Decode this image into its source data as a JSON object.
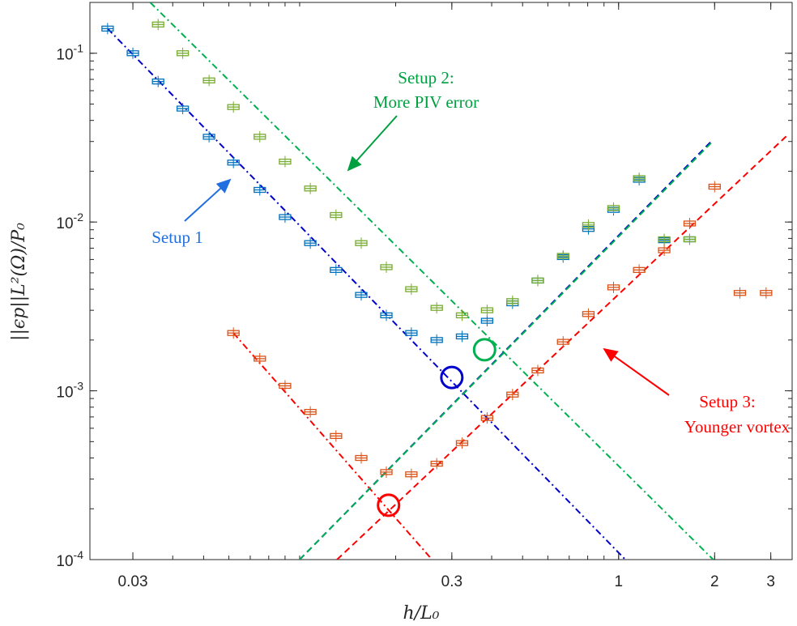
{
  "chart_data": {
    "type": "scatter",
    "title": "",
    "xlabel": "h/L₀",
    "ylabel": "||ϵp||L²(Ω)/P₀",
    "xscale": "log",
    "yscale": "log",
    "xlim": [
      0.022,
      3.5
    ],
    "ylim": [
      0.0001,
      0.2
    ],
    "grid": false,
    "legend": "none",
    "x_ticks": [
      {
        "value": 0.03,
        "label": "0.03"
      },
      {
        "value": 0.3,
        "label": "0.3"
      },
      {
        "value": 1,
        "label": "1"
      },
      {
        "value": 2,
        "label": "2"
      },
      {
        "value": 3,
        "label": "3"
      }
    ],
    "y_ticks": [
      {
        "value": 0.1,
        "base": "10",
        "exp": "-1"
      },
      {
        "value": 0.01,
        "base": "10",
        "exp": "-2"
      },
      {
        "value": 0.001,
        "base": "10",
        "exp": "-3"
      },
      {
        "value": 0.0001,
        "base": "10",
        "exp": "-4"
      }
    ],
    "series": [
      {
        "color": "#0072BD",
        "x": [
          0.025,
          0.03,
          0.036,
          0.043,
          0.052,
          0.062,
          0.075,
          0.09,
          0.108,
          0.13,
          0.156,
          0.187,
          0.224,
          0.269,
          0.323,
          0.387,
          0.465,
          0.558,
          0.67,
          0.804,
          0.964,
          1.16,
          1.39,
          1.67
        ],
        "y": [
          0.14,
          0.1,
          0.068,
          0.047,
          0.032,
          0.0225,
          0.0155,
          0.0107,
          0.0075,
          0.0052,
          0.0037,
          0.0028,
          0.0022,
          0.002,
          0.0021,
          0.0026,
          0.0033,
          0.0045,
          0.0062,
          0.0091,
          0.0118,
          0.0178,
          0.0078,
          0.0079
        ]
      },
      {
        "color": "#77AC30",
        "x": [
          0.036,
          0.043,
          0.052,
          0.062,
          0.075,
          0.09,
          0.108,
          0.13,
          0.156,
          0.187,
          0.224,
          0.269,
          0.323,
          0.387,
          0.465,
          0.558,
          0.67,
          0.804,
          0.964,
          1.16,
          1.39,
          1.67
        ],
        "y": [
          0.148,
          0.1,
          0.069,
          0.048,
          0.032,
          0.0228,
          0.0158,
          0.011,
          0.0075,
          0.0054,
          0.004,
          0.0031,
          0.0028,
          0.003,
          0.0034,
          0.0045,
          0.0063,
          0.0096,
          0.0121,
          0.0182,
          0.0079,
          0.0079
        ]
      },
      {
        "color": "#D95319",
        "x": [
          0.062,
          0.075,
          0.09,
          0.108,
          0.13,
          0.156,
          0.187,
          0.224,
          0.269,
          0.323,
          0.387,
          0.465,
          0.558,
          0.67,
          0.804,
          0.964,
          1.16,
          1.39,
          1.67,
          2.0,
          2.4,
          2.9
        ],
        "y": [
          0.0022,
          0.00155,
          0.00107,
          0.00075,
          0.00054,
          0.0004,
          0.00033,
          0.00032,
          0.00037,
          0.00049,
          0.00069,
          0.00095,
          0.00132,
          0.00195,
          0.00285,
          0.0041,
          0.0052,
          0.0068,
          0.0098,
          0.0162,
          0.0038,
          0.0038
        ]
      }
    ],
    "fit_lines": [
      {
        "color": "#0000CC",
        "style": "dash-dot",
        "x": [
          0.025,
          1.05
        ],
        "y": [
          0.14,
          0.0001
        ]
      },
      {
        "color": "#00B050",
        "style": "dash-dot",
        "x": [
          0.034,
          1.98
        ],
        "y": [
          0.2,
          0.0001
        ]
      },
      {
        "color": "#FF0000",
        "style": "dash-dot",
        "x": [
          0.062,
          0.26
        ],
        "y": [
          0.0022,
          0.0001
        ]
      },
      {
        "color": "#0000CC",
        "style": "dashed",
        "x": [
          0.1,
          1.95
        ],
        "y": [
          0.0001,
          0.03
        ]
      },
      {
        "color": "#00B050",
        "style": "dashed",
        "x": [
          0.1,
          1.97
        ],
        "y": [
          0.0001,
          0.03
        ]
      },
      {
        "color": "#FF0000",
        "style": "dashed",
        "x": [
          0.131,
          3.4
        ],
        "y": [
          0.0001,
          0.033
        ]
      }
    ],
    "circles": [
      {
        "color": "#0000CC",
        "x": 0.3,
        "y": 0.0012
      },
      {
        "color": "#00B050",
        "x": 0.38,
        "y": 0.00175
      },
      {
        "color": "#FF0000",
        "x": 0.19,
        "y": 0.00021
      }
    ],
    "annotations": [
      {
        "id": "setup1",
        "lines": [
          "Setup 1"
        ],
        "color": "#1F6FE0"
      },
      {
        "id": "setup2",
        "lines": [
          "Setup 2:",
          "More PIV error"
        ],
        "color": "#00A040"
      },
      {
        "id": "setup3",
        "lines": [
          "Setup 3:",
          "Younger vortex"
        ],
        "color": "#FF0000"
      }
    ]
  }
}
